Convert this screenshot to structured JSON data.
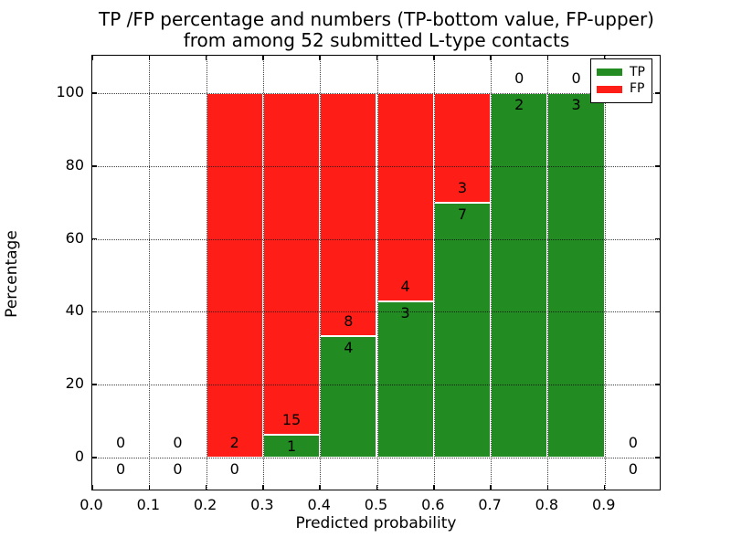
{
  "chart_data": {
    "type": "bar",
    "stacked": true,
    "title_line1": "TP /FP percentage and numbers (TP-bottom value, FP-upper)",
    "title_line2": "from among 52 submitted L-type contacts",
    "xlabel": "Predicted probability",
    "ylabel": "Percentage",
    "xlim": [
      0.0,
      1.0
    ],
    "ylim": [
      -9.3,
      110.3
    ],
    "grid": "dotted",
    "xticks": [
      0.0,
      0.1,
      0.2,
      0.3,
      0.4,
      0.5,
      0.6,
      0.7,
      0.8,
      0.9
    ],
    "xtick_labels": [
      "0.0",
      "0.1",
      "0.2",
      "0.3",
      "0.4",
      "0.5",
      "0.6",
      "0.7",
      "0.8",
      "0.9"
    ],
    "yticks": [
      0,
      20,
      40,
      60,
      80,
      100
    ],
    "ytick_labels": [
      "0",
      "20",
      "40",
      "60",
      "80",
      "100"
    ],
    "colors": {
      "tp": "#228b22",
      "fp": "#ff1d17"
    },
    "legend": {
      "position": "upper-right",
      "entries": [
        {
          "label": "TP",
          "color": "#228b22"
        },
        {
          "label": "FP",
          "color": "#ff1d17"
        }
      ]
    },
    "note": "Each bin stacked to 100%: green TP fraction bottom, red FP fraction top; labels are raw counts (FP above, TP below)",
    "bins": [
      {
        "x0": 0.0,
        "x1": 0.1,
        "tp": 0,
        "fp": 0
      },
      {
        "x0": 0.1,
        "x1": 0.2,
        "tp": 0,
        "fp": 0
      },
      {
        "x0": 0.2,
        "x1": 0.3,
        "tp": 0,
        "fp": 2
      },
      {
        "x0": 0.3,
        "x1": 0.4,
        "tp": 1,
        "fp": 15
      },
      {
        "x0": 0.4,
        "x1": 0.5,
        "tp": 4,
        "fp": 8
      },
      {
        "x0": 0.5,
        "x1": 0.6,
        "tp": 3,
        "fp": 4
      },
      {
        "x0": 0.6,
        "x1": 0.7,
        "tp": 7,
        "fp": 3
      },
      {
        "x0": 0.7,
        "x1": 0.8,
        "tp": 2,
        "fp": 0
      },
      {
        "x0": 0.8,
        "x1": 0.9,
        "tp": 3,
        "fp": 0
      },
      {
        "x0": 0.9,
        "x1": 1.0,
        "tp": 0,
        "fp": 0
      }
    ],
    "total_contacts": 52
  }
}
